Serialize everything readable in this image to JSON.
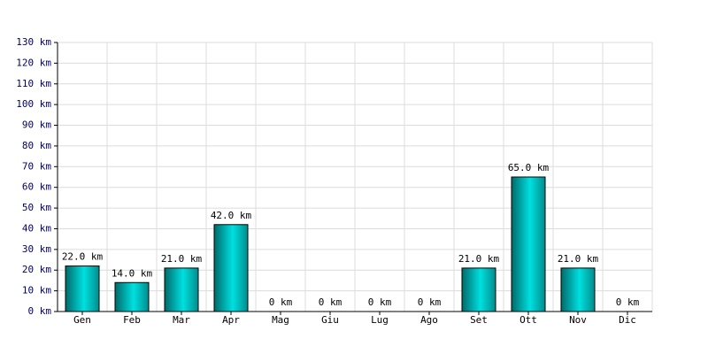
{
  "chart_data": {
    "type": "bar",
    "categories": [
      "Gen",
      "Feb",
      "Mar",
      "Apr",
      "Mag",
      "Giu",
      "Lug",
      "Ago",
      "Set",
      "Ott",
      "Nov",
      "Dic"
    ],
    "values": [
      22,
      14,
      21,
      42,
      0,
      0,
      0,
      0,
      21,
      65,
      21,
      0
    ],
    "value_labels": [
      "22.0 km",
      "14.0 km",
      "21.0 km",
      "42.0 km",
      "0 km",
      "0 km",
      "0 km",
      "0 km",
      "21.0 km",
      "65.0 km",
      "21.0 km",
      "0 km"
    ],
    "color": "#00e0e0",
    "ylim": [
      0,
      130
    ],
    "yticks": [
      {
        "value": 0,
        "label": "0 km"
      },
      {
        "value": 10,
        "label": "10 km"
      },
      {
        "value": 20,
        "label": "20 km"
      },
      {
        "value": 30,
        "label": "30 km"
      },
      {
        "value": 40,
        "label": "40 km"
      },
      {
        "value": 50,
        "label": "50 km"
      },
      {
        "value": 60,
        "label": "60 km"
      },
      {
        "value": 70,
        "label": "70 km"
      },
      {
        "value": 80,
        "label": "80 km"
      },
      {
        "value": 90,
        "label": "90 km"
      },
      {
        "value": 100,
        "label": "100 km"
      },
      {
        "value": 110,
        "label": "110 km"
      },
      {
        "value": 120,
        "label": "120 km"
      },
      {
        "value": 130,
        "label": "130 km"
      }
    ],
    "grid": true
  }
}
